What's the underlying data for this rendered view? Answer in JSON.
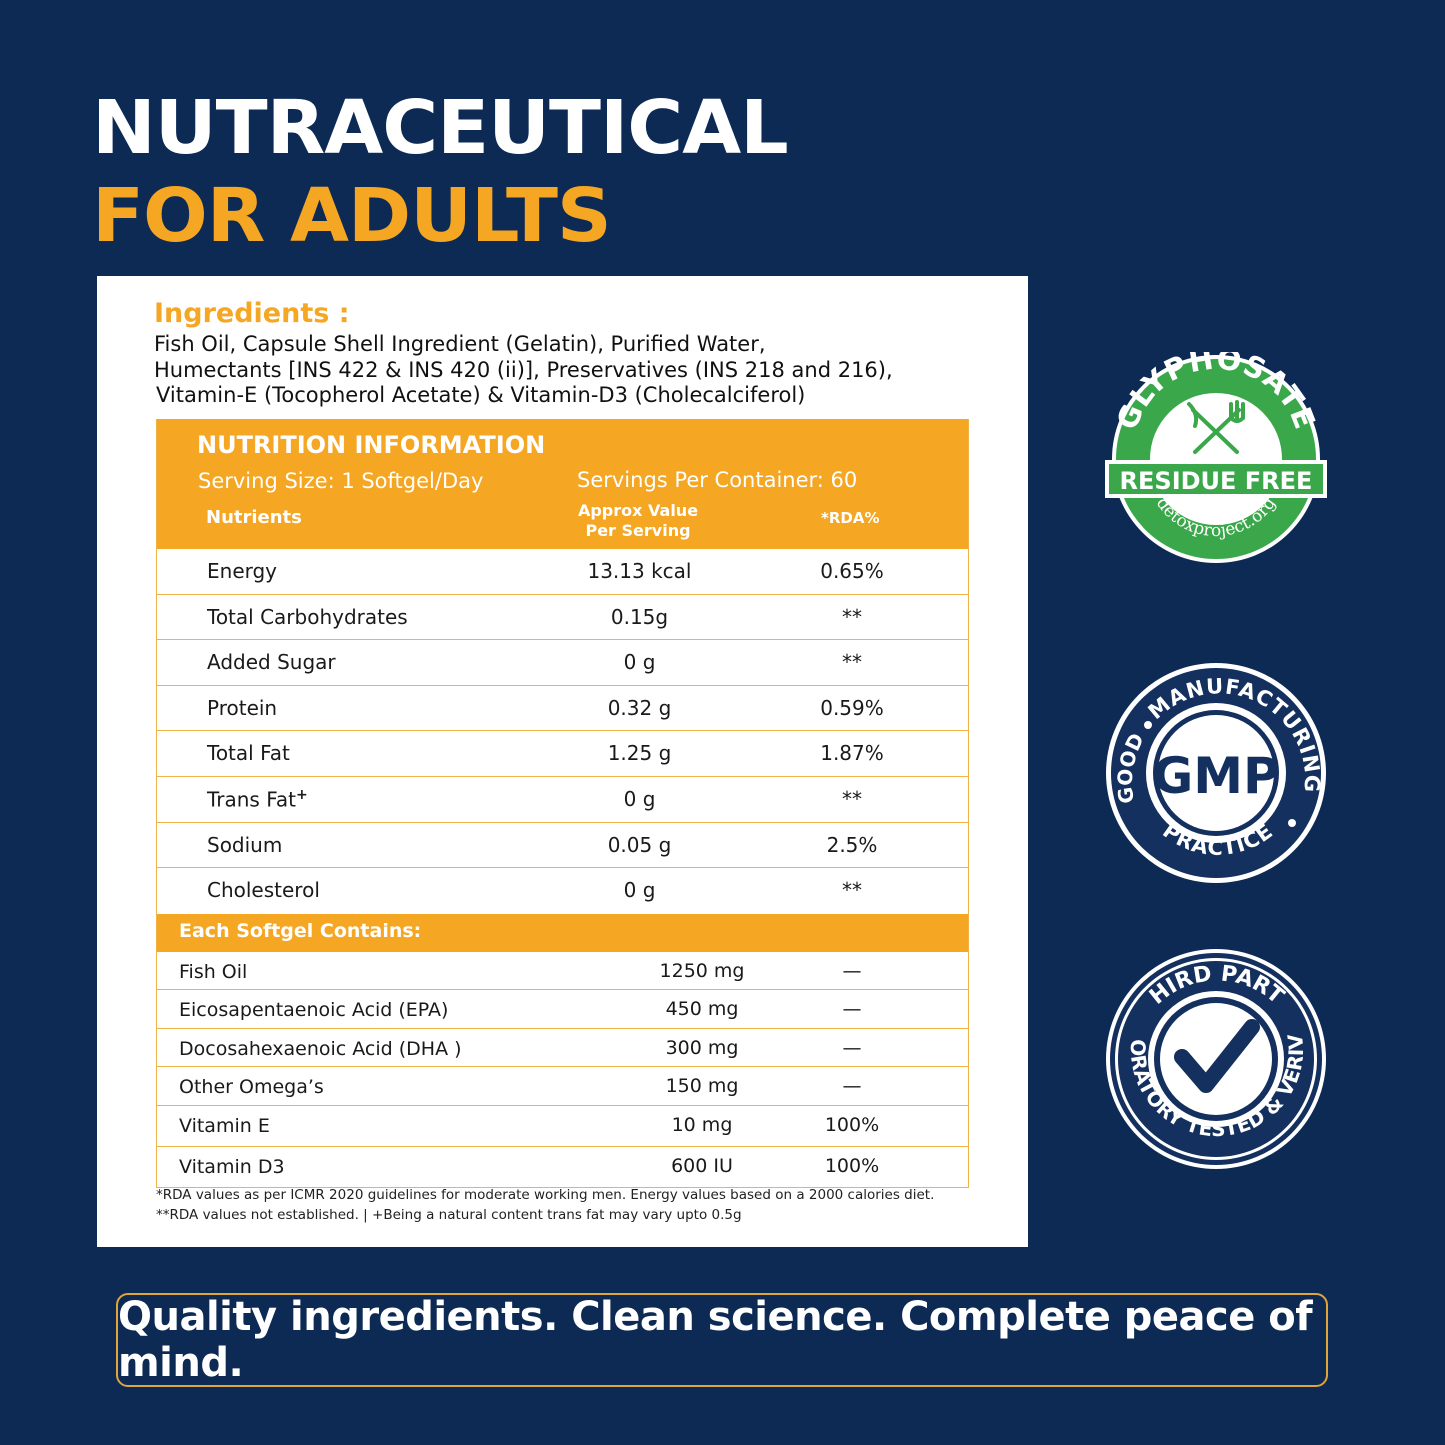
{
  "headline": {
    "line1": "NUTRACEUTICAL",
    "line2": "FOR ADULTS"
  },
  "ingredients": {
    "title": "Ingredients :",
    "line1": "Fish Oil, Capsule Shell Ingredient (Gelatin), Purified Water,",
    "line2": "Humectants [INS 422 & INS 420 (ii)], Preservatives (INS 218 and 216),",
    "line3": "Vitamin-E (Tocopherol Acetate) & Vitamin-D3 (Cholecalciferol)"
  },
  "nutrition": {
    "title": "NUTRITION INFORMATION",
    "serving_size": "Serving Size: 1 Softgel/Day",
    "servings_per_container": "Servings Per Container: 60",
    "col_nutrients": "Nutrients",
    "col_approx_line1": "Approx Value",
    "col_approx_line2": "Per Serving",
    "col_rda": "*RDA%",
    "rows": [
      {
        "name": "Energy",
        "value": "13.13 kcal",
        "rda": "0.65%"
      },
      {
        "name": "Total Carbohydrates",
        "value": "0.15g",
        "rda": "**"
      },
      {
        "name": "Added Sugar",
        "value": "0 g",
        "rda": "**"
      },
      {
        "name": "Protein",
        "value": "0.32 g",
        "rda": "0.59%"
      },
      {
        "name": "Total Fat",
        "value": "1.25 g",
        "rda": "1.87%"
      },
      {
        "name": "Trans Fat",
        "sup": "+",
        "value": "0 g",
        "rda": "**"
      },
      {
        "name": "Sodium",
        "value": "0.05 g",
        "rda": "2.5%"
      },
      {
        "name": "Cholesterol",
        "value": "0 g",
        "rda": "**"
      }
    ]
  },
  "softgel": {
    "title": "Each Softgel Contains:",
    "rows": [
      {
        "name": "Fish Oil",
        "value": "1250 mg",
        "rda": "—"
      },
      {
        "name": "Eicosapentaenoic Acid (EPA)",
        "value": "450 mg",
        "rda": "—"
      },
      {
        "name": "Docosahexaenoic Acid (DHA )",
        "value": "300 mg",
        "rda": "—"
      },
      {
        "name": "Other Omega’s",
        "value": "150 mg",
        "rda": "—"
      },
      {
        "name": "Vitamin E",
        "value": "10 mg",
        "rda": "100%"
      },
      {
        "name": "Vitamin D3",
        "value": "600 IU",
        "rda": "100%"
      }
    ]
  },
  "footnotes": {
    "line1": "*RDA values as per ICMR 2020 guidelines for moderate working men. Energy values based on a 2000 calories diet.",
    "line2": "**RDA values not established.   |  +Being a natural content trans fat may vary upto 0.5g"
  },
  "badges": {
    "glyphosate": {
      "top": "GLYPHOSATE",
      "banner": "RESIDUE FREE",
      "bottom": "detoxproject.org",
      "icon": "fork-knife-cross-icon",
      "color": "#3aa84a"
    },
    "gmp": {
      "center": "GMP",
      "top": "MANUFACTURING",
      "left": "GOOD",
      "bottom": "PRACTICE"
    },
    "third_party": {
      "top": "THIRD PARTY",
      "ring": "LABORATORY TESTED & VERIVIED",
      "icon": "checkmark-icon"
    }
  },
  "tagline": "Quality ingredients. Clean science. Complete peace of mind.",
  "colors": {
    "background": "#0d2a55",
    "accent": "#f5a623",
    "badge_navy": "#13305e",
    "badge_green": "#3aa84a"
  }
}
